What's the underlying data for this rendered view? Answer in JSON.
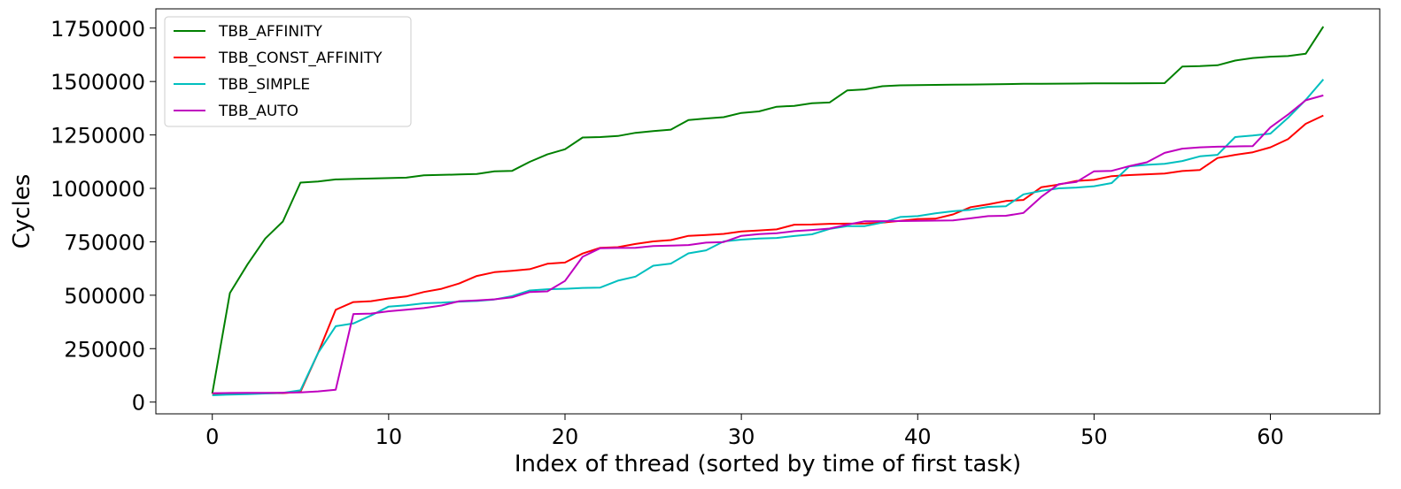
{
  "chart_data": {
    "type": "line",
    "xlabel": "Index of thread (sorted by time of first task)",
    "ylabel": "Cycles",
    "xlim": [
      -3.2,
      66.2
    ],
    "ylim": [
      -55000,
      1840000
    ],
    "xticks": [
      0,
      10,
      20,
      30,
      40,
      50,
      60
    ],
    "yticks": [
      0,
      250000,
      500000,
      750000,
      1000000,
      1250000,
      1500000,
      1750000
    ],
    "grid": false,
    "legend_position": "upper-left",
    "series": [
      {
        "name": "TBB_AFFINITY",
        "color": "#008000",
        "values": [
          40000,
          510000,
          645000,
          765000,
          845000,
          1027000,
          1032000,
          1042000,
          1044000,
          1046000,
          1048000,
          1050000,
          1061000,
          1063000,
          1065000,
          1067000,
          1080000,
          1082000,
          1124000,
          1159000,
          1183000,
          1238000,
          1240000,
          1245000,
          1260000,
          1268000,
          1275000,
          1320000,
          1327000,
          1333000,
          1353000,
          1360000,
          1382000,
          1386000,
          1398000,
          1402000,
          1458000,
          1463000,
          1478000,
          1482000,
          1483000,
          1484000,
          1485000,
          1486000,
          1486500,
          1488000,
          1489000,
          1489500,
          1490000,
          1490500,
          1491000,
          1491000,
          1491500,
          1492000,
          1492500,
          1570000,
          1572000,
          1576000,
          1598000,
          1610000,
          1616000,
          1619000,
          1630000,
          1757000
        ]
      },
      {
        "name": "TBB_CONST_AFFINITY",
        "color": "#ff0000",
        "values": [
          38000,
          39000,
          40000,
          41000,
          42000,
          48000,
          230000,
          432000,
          468000,
          472000,
          485000,
          494000,
          515000,
          530000,
          555000,
          590000,
          608000,
          614000,
          622000,
          647000,
          653000,
          695000,
          722000,
          725000,
          740000,
          752000,
          758000,
          778000,
          782000,
          787000,
          798000,
          803000,
          808000,
          830000,
          831000,
          834000,
          835000,
          836000,
          840000,
          848000,
          856000,
          858000,
          878000,
          912000,
          925000,
          941000,
          946000,
          1005000,
          1018000,
          1035000,
          1040000,
          1057000,
          1062000,
          1066000,
          1069000,
          1081000,
          1086000,
          1142000,
          1157000,
          1169000,
          1192000,
          1230000,
          1302000,
          1341000
        ]
      },
      {
        "name": "TBB_SIMPLE",
        "color": "#00bfbf",
        "values": [
          32000,
          35000,
          37000,
          40000,
          43000,
          55000,
          230000,
          355000,
          368000,
          405000,
          447000,
          453000,
          462000,
          465000,
          470000,
          473000,
          480000,
          496000,
          522000,
          528000,
          530000,
          534000,
          536000,
          568000,
          587000,
          638000,
          648000,
          696000,
          710000,
          752000,
          760000,
          765000,
          768000,
          777000,
          785000,
          810000,
          823000,
          823500,
          840000,
          866000,
          870000,
          883000,
          893000,
          900000,
          913000,
          916000,
          972000,
          988000,
          1000000,
          1004000,
          1010000,
          1025000,
          1103000,
          1110000,
          1115000,
          1128000,
          1150000,
          1157000,
          1240000,
          1247000,
          1256000,
          1330000,
          1414000,
          1510000
        ]
      },
      {
        "name": "TBB_AUTO",
        "color": "#bf00bf",
        "values": [
          42000,
          42500,
          43000,
          43500,
          44000,
          45000,
          50000,
          58000,
          412000,
          414000,
          425000,
          432000,
          440000,
          452000,
          472000,
          476000,
          481000,
          490000,
          515000,
          518000,
          567000,
          680000,
          720000,
          721000,
          722000,
          730000,
          732000,
          735000,
          746000,
          749000,
          778000,
          786000,
          790000,
          800000,
          805000,
          812000,
          830000,
          846000,
          846500,
          847000,
          848000,
          849000,
          850000,
          860000,
          870000,
          872000,
          885000,
          960000,
          1020000,
          1030000,
          1080000,
          1082000,
          1104000,
          1122000,
          1166000,
          1186000,
          1192000,
          1195000,
          1196000,
          1198000,
          1285000,
          1345000,
          1412000,
          1435000
        ]
      }
    ]
  }
}
